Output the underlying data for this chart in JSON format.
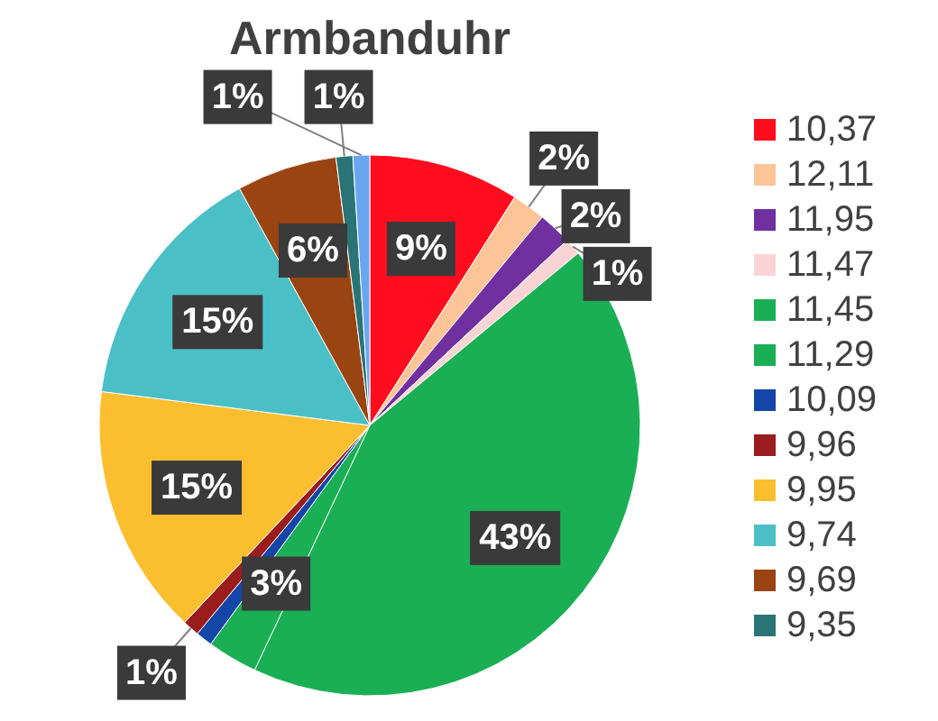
{
  "chart_data": {
    "type": "pie",
    "title": "Armbanduhr",
    "categories": [
      "10,37",
      "12,11",
      "11,95",
      "11,47",
      "11,45",
      "11,29",
      "10,09",
      "9,96",
      "9,95",
      "9,74",
      "9,69",
      "9,35",
      null
    ],
    "values": [
      9,
      2,
      2,
      1,
      43,
      3,
      1,
      1,
      15,
      15,
      6,
      1,
      1
    ],
    "value_labels": [
      "9%",
      "2%",
      "2%",
      "1%",
      "43%",
      "3%",
      null,
      "1%",
      "15%",
      "15%",
      "6%",
      "1%",
      "1%"
    ],
    "colors": [
      "#ff0d1e",
      "#fcc497",
      "#7030a0",
      "#fad4d4",
      "#1aaf54",
      "#1aaf54",
      "#1446a8",
      "#9b1c1c",
      "#fbbe2e",
      "#4bbfc6",
      "#9a4412",
      "#2a7478",
      "#6aa6f0"
    ],
    "legend": "right"
  }
}
